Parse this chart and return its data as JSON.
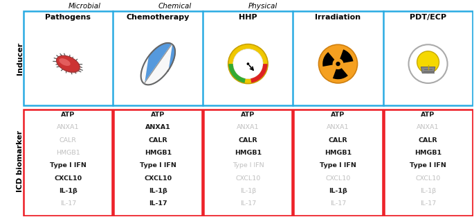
{
  "columns": [
    "Pathogens",
    "Chemotherapy",
    "HHP",
    "Irradiation",
    "PDT/ECP"
  ],
  "category_labels": [
    "Microbial",
    "Chemical",
    "Physical"
  ],
  "category_col": [
    0,
    1,
    2
  ],
  "row_labels": [
    "Inducer",
    "ICD biomarker"
  ],
  "biomarkers": [
    {
      "items": [
        "ATP",
        "ANXA1",
        "CALR",
        "HMGB1",
        "Type I IFN",
        "CXCL10",
        "IL-1β",
        "IL-17"
      ],
      "active": [
        true,
        false,
        false,
        false,
        true,
        true,
        true,
        false
      ]
    },
    {
      "items": [
        "ATP",
        "ANXA1",
        "CALR",
        "HMGB1",
        "Type I IFN",
        "CXCL10",
        "IL-1β",
        "IL-17"
      ],
      "active": [
        true,
        true,
        true,
        true,
        true,
        true,
        true,
        true
      ]
    },
    {
      "items": [
        "ATP",
        "ANXA1",
        "CALR",
        "HMGB1",
        "Type I IFN",
        "CXCL10",
        "IL-1β",
        "IL-17"
      ],
      "active": [
        true,
        false,
        true,
        true,
        false,
        false,
        false,
        false
      ]
    },
    {
      "items": [
        "ATP",
        "ANXA1",
        "CALR",
        "HMGB1",
        "Type I IFN",
        "CXCL10",
        "IL-1β",
        "IL-17"
      ],
      "active": [
        true,
        false,
        true,
        true,
        true,
        false,
        true,
        false
      ]
    },
    {
      "items": [
        "ATP",
        "ANXA1",
        "CALR",
        "HMGB1",
        "Type I IFN",
        "CXCL10",
        "IL-1β",
        "IL-17"
      ],
      "active": [
        true,
        false,
        true,
        true,
        true,
        false,
        false,
        false
      ]
    }
  ],
  "inducer_box_color": "#29abe2",
  "biomarker_box_color": "#ed1c24",
  "active_color": "#1a1a1a",
  "inactive_color": "#c0c0c0",
  "bg_color": "#ffffff",
  "lw": 1.8
}
